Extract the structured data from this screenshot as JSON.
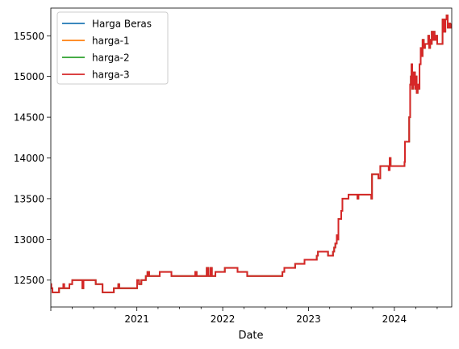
{
  "chart_data": {
    "type": "line",
    "title": "",
    "xlabel": "Date",
    "ylabel": "",
    "xlim": [
      "2020-01-01",
      "2024-09-01"
    ],
    "ylim": [
      12170,
      15840
    ],
    "grid": false,
    "legend_position": "top-left",
    "x_ticks": [
      {
        "date": "2021-01-01",
        "label": "2021"
      },
      {
        "date": "2022-01-01",
        "label": "2022"
      },
      {
        "date": "2023-01-01",
        "label": "2023"
      },
      {
        "date": "2024-01-01",
        "label": "2024"
      }
    ],
    "y_ticks": [
      12500,
      13000,
      13500,
      14000,
      14500,
      15000,
      15500
    ],
    "series": [
      {
        "name": "Harga Beras",
        "color": "#1f77b4"
      },
      {
        "name": "harga-1",
        "color": "#ff7f0e"
      },
      {
        "name": "harga-2",
        "color": "#2ca02c"
      },
      {
        "name": "harga-3",
        "color": "#d62728"
      }
    ],
    "points": [
      [
        "2020-01-01",
        12450
      ],
      [
        "2020-01-03",
        12400
      ],
      [
        "2020-01-08",
        12350
      ],
      [
        "2020-02-01",
        12350
      ],
      [
        "2020-02-05",
        12400
      ],
      [
        "2020-02-20",
        12400
      ],
      [
        "2020-02-23",
        12450
      ],
      [
        "2020-02-27",
        12400
      ],
      [
        "2020-03-15",
        12400
      ],
      [
        "2020-03-20",
        12450
      ],
      [
        "2020-04-01",
        12500
      ],
      [
        "2020-05-10",
        12500
      ],
      [
        "2020-05-14",
        12400
      ],
      [
        "2020-05-19",
        12500
      ],
      [
        "2020-07-05",
        12500
      ],
      [
        "2020-07-10",
        12450
      ],
      [
        "2020-08-05",
        12450
      ],
      [
        "2020-08-08",
        12350
      ],
      [
        "2020-09-20",
        12350
      ],
      [
        "2020-09-25",
        12400
      ],
      [
        "2020-10-10",
        12400
      ],
      [
        "2020-10-14",
        12450
      ],
      [
        "2020-10-18",
        12400
      ],
      [
        "2020-12-28",
        12400
      ],
      [
        "2021-01-02",
        12500
      ],
      [
        "2021-01-10",
        12450
      ],
      [
        "2021-01-20",
        12500
      ],
      [
        "2021-02-01",
        12500
      ],
      [
        "2021-02-08",
        12550
      ],
      [
        "2021-02-15",
        12600
      ],
      [
        "2021-02-22",
        12550
      ],
      [
        "2021-04-01",
        12550
      ],
      [
        "2021-04-08",
        12600
      ],
      [
        "2021-05-20",
        12600
      ],
      [
        "2021-05-28",
        12550
      ],
      [
        "2021-09-01",
        12550
      ],
      [
        "2021-09-06",
        12600
      ],
      [
        "2021-09-12",
        12550
      ],
      [
        "2021-10-20",
        12550
      ],
      [
        "2021-10-25",
        12650
      ],
      [
        "2021-11-01",
        12550
      ],
      [
        "2021-11-10",
        12650
      ],
      [
        "2021-11-16",
        12550
      ],
      [
        "2021-12-01",
        12600
      ],
      [
        "2022-01-01",
        12600
      ],
      [
        "2022-01-10",
        12650
      ],
      [
        "2022-03-01",
        12650
      ],
      [
        "2022-03-05",
        12600
      ],
      [
        "2022-04-10",
        12600
      ],
      [
        "2022-04-15",
        12550
      ],
      [
        "2022-09-05",
        12550
      ],
      [
        "2022-09-12",
        12600
      ],
      [
        "2022-09-20",
        12650
      ],
      [
        "2022-11-01",
        12650
      ],
      [
        "2022-11-05",
        12700
      ],
      [
        "2022-12-10",
        12700
      ],
      [
        "2022-12-15",
        12750
      ],
      [
        "2023-02-01",
        12750
      ],
      [
        "2023-02-05",
        12800
      ],
      [
        "2023-02-10",
        12850
      ],
      [
        "2023-03-20",
        12850
      ],
      [
        "2023-03-25",
        12800
      ],
      [
        "2023-04-10",
        12800
      ],
      [
        "2023-04-15",
        12850
      ],
      [
        "2023-04-20",
        12900
      ],
      [
        "2023-04-25",
        12950
      ],
      [
        "2023-05-01",
        13050
      ],
      [
        "2023-05-04",
        13000
      ],
      [
        "2023-05-08",
        13250
      ],
      [
        "2023-05-18",
        13250
      ],
      [
        "2023-05-20",
        13350
      ],
      [
        "2023-05-25",
        13500
      ],
      [
        "2023-06-15",
        13500
      ],
      [
        "2023-06-20",
        13550
      ],
      [
        "2023-07-25",
        13550
      ],
      [
        "2023-07-28",
        13500
      ],
      [
        "2023-08-01",
        13550
      ],
      [
        "2023-09-20",
        13550
      ],
      [
        "2023-09-25",
        13500
      ],
      [
        "2023-09-28",
        13800
      ],
      [
        "2023-10-20",
        13800
      ],
      [
        "2023-10-25",
        13750
      ],
      [
        "2023-11-02",
        13900
      ],
      [
        "2023-12-05",
        13900
      ],
      [
        "2023-12-08",
        13850
      ],
      [
        "2023-12-12",
        14000
      ],
      [
        "2023-12-16",
        13900
      ],
      [
        "2024-02-10",
        13900
      ],
      [
        "2024-02-13",
        13950
      ],
      [
        "2024-02-15",
        14200
      ],
      [
        "2024-03-01",
        14200
      ],
      [
        "2024-03-04",
        14500
      ],
      [
        "2024-03-08",
        14900
      ],
      [
        "2024-03-11",
        15000
      ],
      [
        "2024-03-14",
        15150
      ],
      [
        "2024-03-17",
        14850
      ],
      [
        "2024-03-20",
        15050
      ],
      [
        "2024-03-23",
        14900
      ],
      [
        "2024-03-26",
        15050
      ],
      [
        "2024-03-29",
        14850
      ],
      [
        "2024-04-02",
        15000
      ],
      [
        "2024-04-05",
        14800
      ],
      [
        "2024-04-09",
        14900
      ],
      [
        "2024-04-13",
        14850
      ],
      [
        "2024-04-17",
        15150
      ],
      [
        "2024-04-22",
        15350
      ],
      [
        "2024-04-26",
        15250
      ],
      [
        "2024-04-30",
        15450
      ],
      [
        "2024-05-05",
        15350
      ],
      [
        "2024-05-10",
        15400
      ],
      [
        "2024-05-20",
        15400
      ],
      [
        "2024-05-24",
        15500
      ],
      [
        "2024-05-28",
        15350
      ],
      [
        "2024-06-01",
        15450
      ],
      [
        "2024-06-04",
        15400
      ],
      [
        "2024-06-08",
        15550
      ],
      [
        "2024-06-12",
        15450
      ],
      [
        "2024-06-16",
        15550
      ],
      [
        "2024-06-20",
        15450
      ],
      [
        "2024-06-25",
        15500
      ],
      [
        "2024-07-01",
        15400
      ],
      [
        "2024-07-20",
        15400
      ],
      [
        "2024-07-24",
        15700
      ],
      [
        "2024-07-30",
        15550
      ],
      [
        "2024-08-05",
        15700
      ],
      [
        "2024-08-10",
        15750
      ],
      [
        "2024-08-15",
        15600
      ],
      [
        "2024-08-20",
        15650
      ],
      [
        "2024-08-25",
        15600
      ],
      [
        "2024-09-01",
        15650
      ]
    ]
  }
}
